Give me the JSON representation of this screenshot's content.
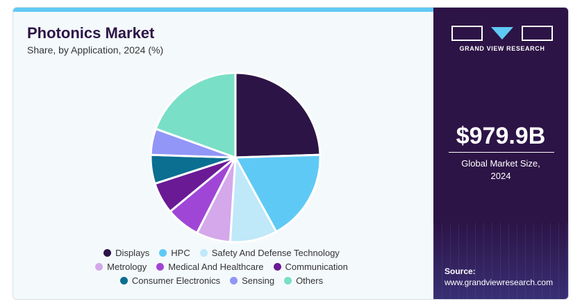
{
  "chart_data": {
    "type": "pie",
    "title": "Photonics Market",
    "subtitle": "Share, by Application, 2024 (%)",
    "legend_position": "bottom",
    "slices": [
      {
        "name": "Displays",
        "value": 24.5,
        "color": "#2d1446"
      },
      {
        "name": "HPC",
        "value": 17.5,
        "color": "#5fc9f5"
      },
      {
        "name": "Safety And Defense Technology",
        "value": 9.0,
        "color": "#bfe8f9"
      },
      {
        "name": "Metrology",
        "value": 6.5,
        "color": "#d4a8ea"
      },
      {
        "name": "Medical And Healthcare",
        "value": 6.5,
        "color": "#a046d6"
      },
      {
        "name": "Communication",
        "value": 6.0,
        "color": "#6a1a94"
      },
      {
        "name": "Consumer Electronics",
        "value": 5.5,
        "color": "#0a6f91"
      },
      {
        "name": "Sensing",
        "value": 5.0,
        "color": "#9196f7"
      },
      {
        "name": "Others",
        "value": 19.5,
        "color": "#79dfc6"
      }
    ]
  },
  "sidebar": {
    "brand": "GRAND VIEW RESEARCH",
    "market_size_value": "$979.9B",
    "market_size_label_line1": "Global Market Size,",
    "market_size_label_line2": "2024",
    "source_label": "Source:",
    "source_url": "www.grandviewresearch.com"
  }
}
